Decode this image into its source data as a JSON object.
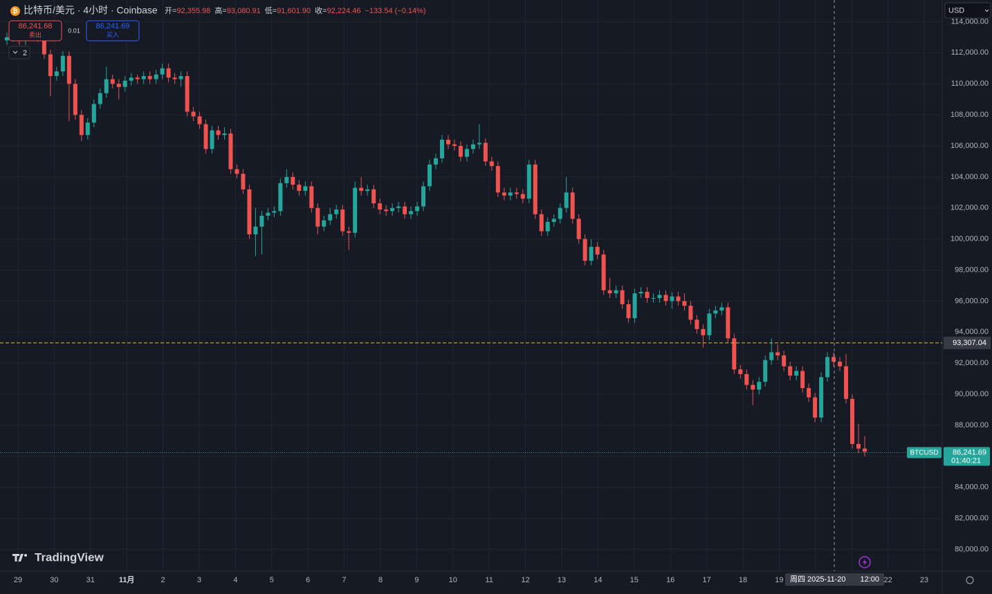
{
  "header": {
    "title": "比特币/美元 · 4小时 · Coinbase",
    "ohlc": [
      {
        "label": "开=",
        "value": "92,355.98"
      },
      {
        "label": "高=",
        "value": "93,080.91"
      },
      {
        "label": "低=",
        "value": "91,601.90"
      },
      {
        "label": "收=",
        "value": "92,224.46"
      }
    ],
    "change": "−133.54 (−0.14%)",
    "sell": {
      "price": "86,241.68",
      "label": "卖出"
    },
    "spread": "0.01",
    "buy": {
      "price": "86,241.69",
      "label": "买入"
    },
    "indicators": "2",
    "currency": "USD"
  },
  "chart_data": {
    "type": "candlestick",
    "up_color": "#26a69a",
    "down_color": "#ef5350",
    "candles": [
      [
        112800,
        113300,
        112500,
        113000
      ],
      [
        113000,
        113500,
        112700,
        113200
      ],
      [
        113200,
        113500,
        112500,
        112800
      ],
      [
        112800,
        113400,
        112500,
        113100
      ],
      [
        113100,
        113600,
        112800,
        113300
      ],
      [
        113300,
        113600,
        112700,
        113000
      ],
      [
        113000,
        113300,
        111600,
        111900
      ],
      [
        111900,
        112200,
        109200,
        110500
      ],
      [
        110500,
        111100,
        110200,
        110800
      ],
      [
        110800,
        112100,
        110500,
        111800
      ],
      [
        111800,
        112100,
        107600,
        110000
      ],
      [
        110000,
        110300,
        107700,
        108000
      ],
      [
        108000,
        108300,
        106300,
        106700
      ],
      [
        106700,
        107800,
        106400,
        107500
      ],
      [
        107500,
        109000,
        107200,
        108700
      ],
      [
        108700,
        109700,
        108400,
        109400
      ],
      [
        109400,
        111100,
        109100,
        110300
      ],
      [
        110300,
        110600,
        109700,
        110000
      ],
      [
        110000,
        110300,
        109000,
        109800
      ],
      [
        109800,
        110500,
        109500,
        110200
      ],
      [
        110200,
        110700,
        109900,
        110400
      ],
      [
        110400,
        110600,
        110000,
        110300
      ],
      [
        110300,
        110800,
        110000,
        110500
      ],
      [
        110500,
        110800,
        110000,
        110300
      ],
      [
        110300,
        110900,
        110000,
        110600
      ],
      [
        110600,
        111300,
        110300,
        111000
      ],
      [
        111000,
        111300,
        110100,
        110400
      ],
      [
        110400,
        110700,
        110000,
        110300
      ],
      [
        110300,
        110800,
        109800,
        110500
      ],
      [
        110500,
        110800,
        107900,
        108200
      ],
      [
        108200,
        108500,
        107600,
        107900
      ],
      [
        107900,
        108200,
        107100,
        107400
      ],
      [
        107400,
        107700,
        105500,
        105800
      ],
      [
        105800,
        107300,
        105500,
        107000
      ],
      [
        107000,
        107300,
        106400,
        106700
      ],
      [
        106700,
        107200,
        106400,
        106800
      ],
      [
        106800,
        107100,
        104200,
        104500
      ],
      [
        104500,
        104800,
        103900,
        104200
      ],
      [
        104200,
        104500,
        102900,
        103200
      ],
      [
        103200,
        103500,
        100000,
        100300
      ],
      [
        100300,
        102000,
        98900,
        100800
      ],
      [
        100800,
        101800,
        99000,
        101500
      ],
      [
        101500,
        102000,
        101200,
        101700
      ],
      [
        101700,
        102100,
        101400,
        101800
      ],
      [
        101800,
        103900,
        101500,
        103600
      ],
      [
        103600,
        104500,
        103300,
        104000
      ],
      [
        104000,
        104300,
        103200,
        103500
      ],
      [
        103500,
        103800,
        102800,
        103100
      ],
      [
        103100,
        103700,
        102800,
        103400
      ],
      [
        103400,
        103700,
        101700,
        102000
      ],
      [
        102000,
        102300,
        100300,
        100800
      ],
      [
        100800,
        101500,
        100500,
        101200
      ],
      [
        101200,
        102000,
        100900,
        101600
      ],
      [
        101600,
        102200,
        101300,
        101900
      ],
      [
        101900,
        102200,
        100200,
        100500
      ],
      [
        100500,
        100800,
        99300,
        100400
      ],
      [
        100400,
        103700,
        100100,
        103300
      ],
      [
        103300,
        104000,
        102800,
        103100
      ],
      [
        103100,
        103500,
        102800,
        103200
      ],
      [
        103200,
        103500,
        102000,
        102300
      ],
      [
        102300,
        102600,
        101600,
        101900
      ],
      [
        101900,
        102200,
        101500,
        101800
      ],
      [
        101800,
        102300,
        101500,
        102000
      ],
      [
        102000,
        102400,
        101700,
        102100
      ],
      [
        102100,
        102400,
        101300,
        101600
      ],
      [
        101600,
        102100,
        101300,
        101800
      ],
      [
        101800,
        102400,
        101500,
        102100
      ],
      [
        102100,
        103700,
        101800,
        103400
      ],
      [
        103400,
        105100,
        103100,
        104800
      ],
      [
        104800,
        105500,
        104500,
        105200
      ],
      [
        105200,
        106700,
        104900,
        106400
      ],
      [
        106400,
        106700,
        105800,
        106100
      ],
      [
        106100,
        106400,
        105700,
        106000
      ],
      [
        106000,
        106300,
        105000,
        105300
      ],
      [
        105300,
        106100,
        105000,
        105800
      ],
      [
        105800,
        106400,
        105500,
        106100
      ],
      [
        106100,
        107400,
        105800,
        106200
      ],
      [
        106200,
        106500,
        104700,
        105000
      ],
      [
        105000,
        105300,
        104400,
        104700
      ],
      [
        104700,
        105000,
        102700,
        103000
      ],
      [
        103000,
        103300,
        102500,
        102800
      ],
      [
        102800,
        103300,
        102500,
        103000
      ],
      [
        103000,
        103300,
        102600,
        102900
      ],
      [
        102900,
        103200,
        102300,
        102600
      ],
      [
        102600,
        105100,
        102300,
        104800
      ],
      [
        104800,
        105100,
        101300,
        101600
      ],
      [
        101600,
        101900,
        100200,
        100500
      ],
      [
        100500,
        101400,
        100200,
        101100
      ],
      [
        101100,
        101600,
        100800,
        101300
      ],
      [
        101300,
        102300,
        101000,
        102000
      ],
      [
        102000,
        104000,
        101700,
        103000
      ],
      [
        103000,
        103300,
        101000,
        101300
      ],
      [
        101300,
        101600,
        99700,
        100000
      ],
      [
        100000,
        100300,
        98300,
        98600
      ],
      [
        98600,
        100000,
        98300,
        99500
      ],
      [
        99500,
        99800,
        98700,
        99000
      ],
      [
        99000,
        99300,
        96400,
        96700
      ],
      [
        96700,
        97500,
        96200,
        96500
      ],
      [
        96500,
        97000,
        96200,
        96700
      ],
      [
        96700,
        97000,
        95500,
        95800
      ],
      [
        95800,
        96100,
        94600,
        94900
      ],
      [
        94900,
        96800,
        94600,
        96500
      ],
      [
        96500,
        96900,
        96200,
        96600
      ],
      [
        96600,
        96900,
        95900,
        96200
      ],
      [
        96200,
        96500,
        95900,
        96200
      ],
      [
        96200,
        96700,
        95900,
        96400
      ],
      [
        96400,
        96700,
        95700,
        96000
      ],
      [
        96000,
        96600,
        95500,
        96300
      ],
      [
        96300,
        96600,
        95700,
        96000
      ],
      [
        96000,
        96500,
        95400,
        95700
      ],
      [
        95700,
        96000,
        94500,
        94800
      ],
      [
        94800,
        95100,
        93900,
        94200
      ],
      [
        94200,
        94500,
        93000,
        93800
      ],
      [
        93800,
        95500,
        93500,
        95200
      ],
      [
        95200,
        95700,
        94900,
        95400
      ],
      [
        95400,
        95900,
        95100,
        95600
      ],
      [
        95600,
        95900,
        93300,
        93600
      ],
      [
        93600,
        93900,
        91300,
        91600
      ],
      [
        91600,
        91900,
        91000,
        91300
      ],
      [
        91300,
        91600,
        90300,
        90600
      ],
      [
        90600,
        90900,
        89300,
        90300
      ],
      [
        90300,
        91100,
        90000,
        90800
      ],
      [
        90800,
        92500,
        90500,
        92200
      ],
      [
        92200,
        93600,
        91900,
        92700
      ],
      [
        92700,
        93200,
        92200,
        92500
      ],
      [
        92500,
        92800,
        91500,
        91800
      ],
      [
        91800,
        92100,
        90900,
        91200
      ],
      [
        91200,
        91800,
        90900,
        91500
      ],
      [
        91500,
        91800,
        90100,
        90400
      ],
      [
        90400,
        90700,
        89500,
        89800
      ],
      [
        89800,
        90100,
        88200,
        88500
      ],
      [
        88500,
        91400,
        88200,
        91100
      ],
      [
        91100,
        92700,
        90800,
        92400
      ],
      [
        92400,
        92700,
        91800,
        92100
      ],
      [
        92100,
        92400,
        91500,
        91800
      ],
      [
        91800,
        92600,
        89400,
        89700
      ],
      [
        89700,
        90000,
        86500,
        86800
      ],
      [
        86800,
        88100,
        86200,
        86500
      ],
      [
        86500,
        87300,
        86000,
        86300
      ]
    ],
    "x_labels": [
      "29",
      "30",
      "31",
      "11月",
      "2",
      "3",
      "4",
      "5",
      "6",
      "7",
      "8",
      "9",
      "10",
      "11",
      "12",
      "13",
      "14",
      "15",
      "16",
      "17",
      "18",
      "19",
      null,
      null,
      "22",
      "23"
    ],
    "ylim": [
      78600,
      115400
    ],
    "yticks": [
      {
        "value": 80000,
        "label": "80,000.00"
      },
      {
        "value": 82000,
        "label": "82,000.00"
      },
      {
        "value": 84000,
        "label": "84,000.00"
      },
      {
        "value": 86000,
        "label": "86,000.00"
      },
      {
        "value": 88000,
        "label": "88,000.00"
      },
      {
        "value": 90000,
        "label": "90,000.00"
      },
      {
        "value": 92000,
        "label": "92,000.00"
      },
      {
        "value": 94000,
        "label": "94,000.00"
      },
      {
        "value": 96000,
        "label": "96,000.00"
      },
      {
        "value": 98000,
        "label": "98,000.00"
      },
      {
        "value": 100000,
        "label": "100,000.00"
      },
      {
        "value": 102000,
        "label": "102,000.00"
      },
      {
        "value": 104000,
        "label": "104,000.00"
      },
      {
        "value": 106000,
        "label": "106,000.00"
      },
      {
        "value": 108000,
        "label": "108,000.00"
      },
      {
        "value": 110000,
        "label": "110,000.00"
      },
      {
        "value": 112000,
        "label": "112,000.00"
      },
      {
        "value": 114000,
        "label": "114,000.00"
      }
    ],
    "crosshair": {
      "price": {
        "value": 93307.04,
        "label": "93,307.04"
      },
      "date": "周四 2025-11-20",
      "time": "12:00"
    },
    "last_price": {
      "symbol": "BTCUSD",
      "price": {
        "value": 86241.69,
        "label": "86,241.69"
      },
      "countdown": "01:40:21"
    },
    "logo": "TradingView"
  }
}
